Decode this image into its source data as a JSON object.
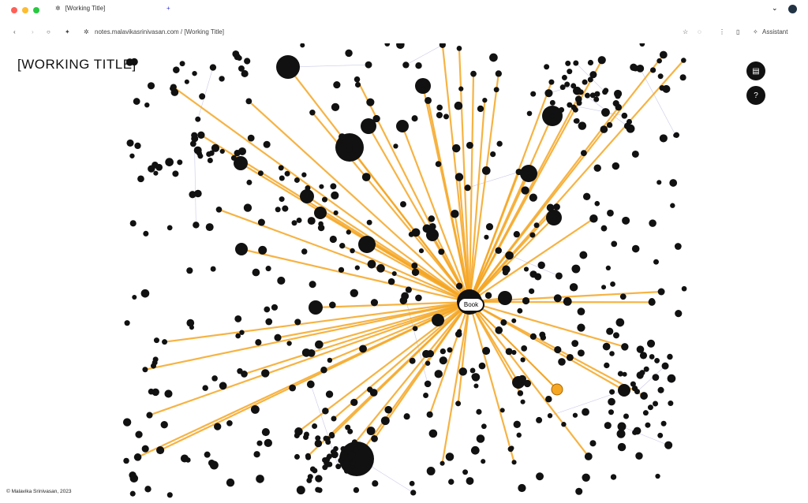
{
  "browser": {
    "tab_title": "[Working Title]",
    "url": "notes.malavikasrinivasan.com / [Working Title]",
    "assistant_label": "Assistant",
    "traffic_lights": [
      "#ff5f57",
      "#febc2e",
      "#28c840"
    ]
  },
  "page": {
    "title": "[WORKING TITLE]",
    "footer": "© Malavika Srinivasan, 2023",
    "buttons": [
      {
        "icon": "document-icon",
        "glyph": "▤"
      },
      {
        "icon": "help-icon",
        "glyph": "?"
      }
    ]
  },
  "graph": {
    "focused_node_label": "Book",
    "node_color": "#111111",
    "edge_highlight_color": "#f5a623",
    "edge_color": "#c9c9e8",
    "highlight_node_color": "#f5a623"
  }
}
